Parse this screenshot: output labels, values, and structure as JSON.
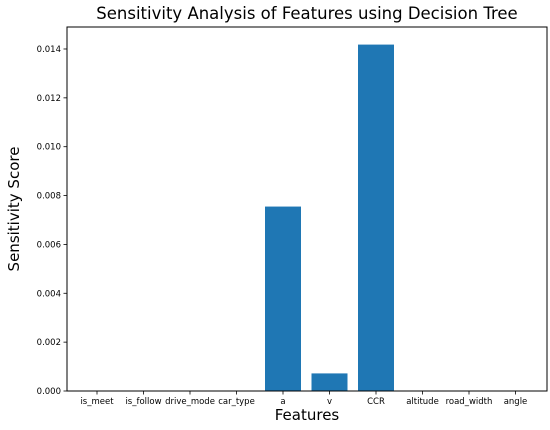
{
  "chart_data": {
    "type": "bar",
    "title": "Sensitivity Analysis of Features using Decision Tree",
    "xlabel": "Features",
    "ylabel": "Sensitivity Score",
    "categories": [
      "is_meet",
      "is_follow",
      "drive_mode",
      "car_type",
      "a",
      "v",
      "CCR",
      "altitude",
      "road_width",
      "angle"
    ],
    "values": [
      0.0,
      0.0,
      0.0,
      0.0,
      0.00755,
      0.00072,
      0.01418,
      0.0,
      0.0,
      0.0
    ],
    "ylim": [
      0,
      0.0149
    ],
    "yticks": [
      0.0,
      0.002,
      0.004,
      0.006,
      0.008,
      0.01,
      0.012,
      0.014
    ],
    "ytick_labels": [
      "0.000",
      "0.002",
      "0.004",
      "0.006",
      "0.008",
      "0.010",
      "0.012",
      "0.014"
    ],
    "bar_color": "#1f77b4",
    "grid": false,
    "legend": "none"
  }
}
